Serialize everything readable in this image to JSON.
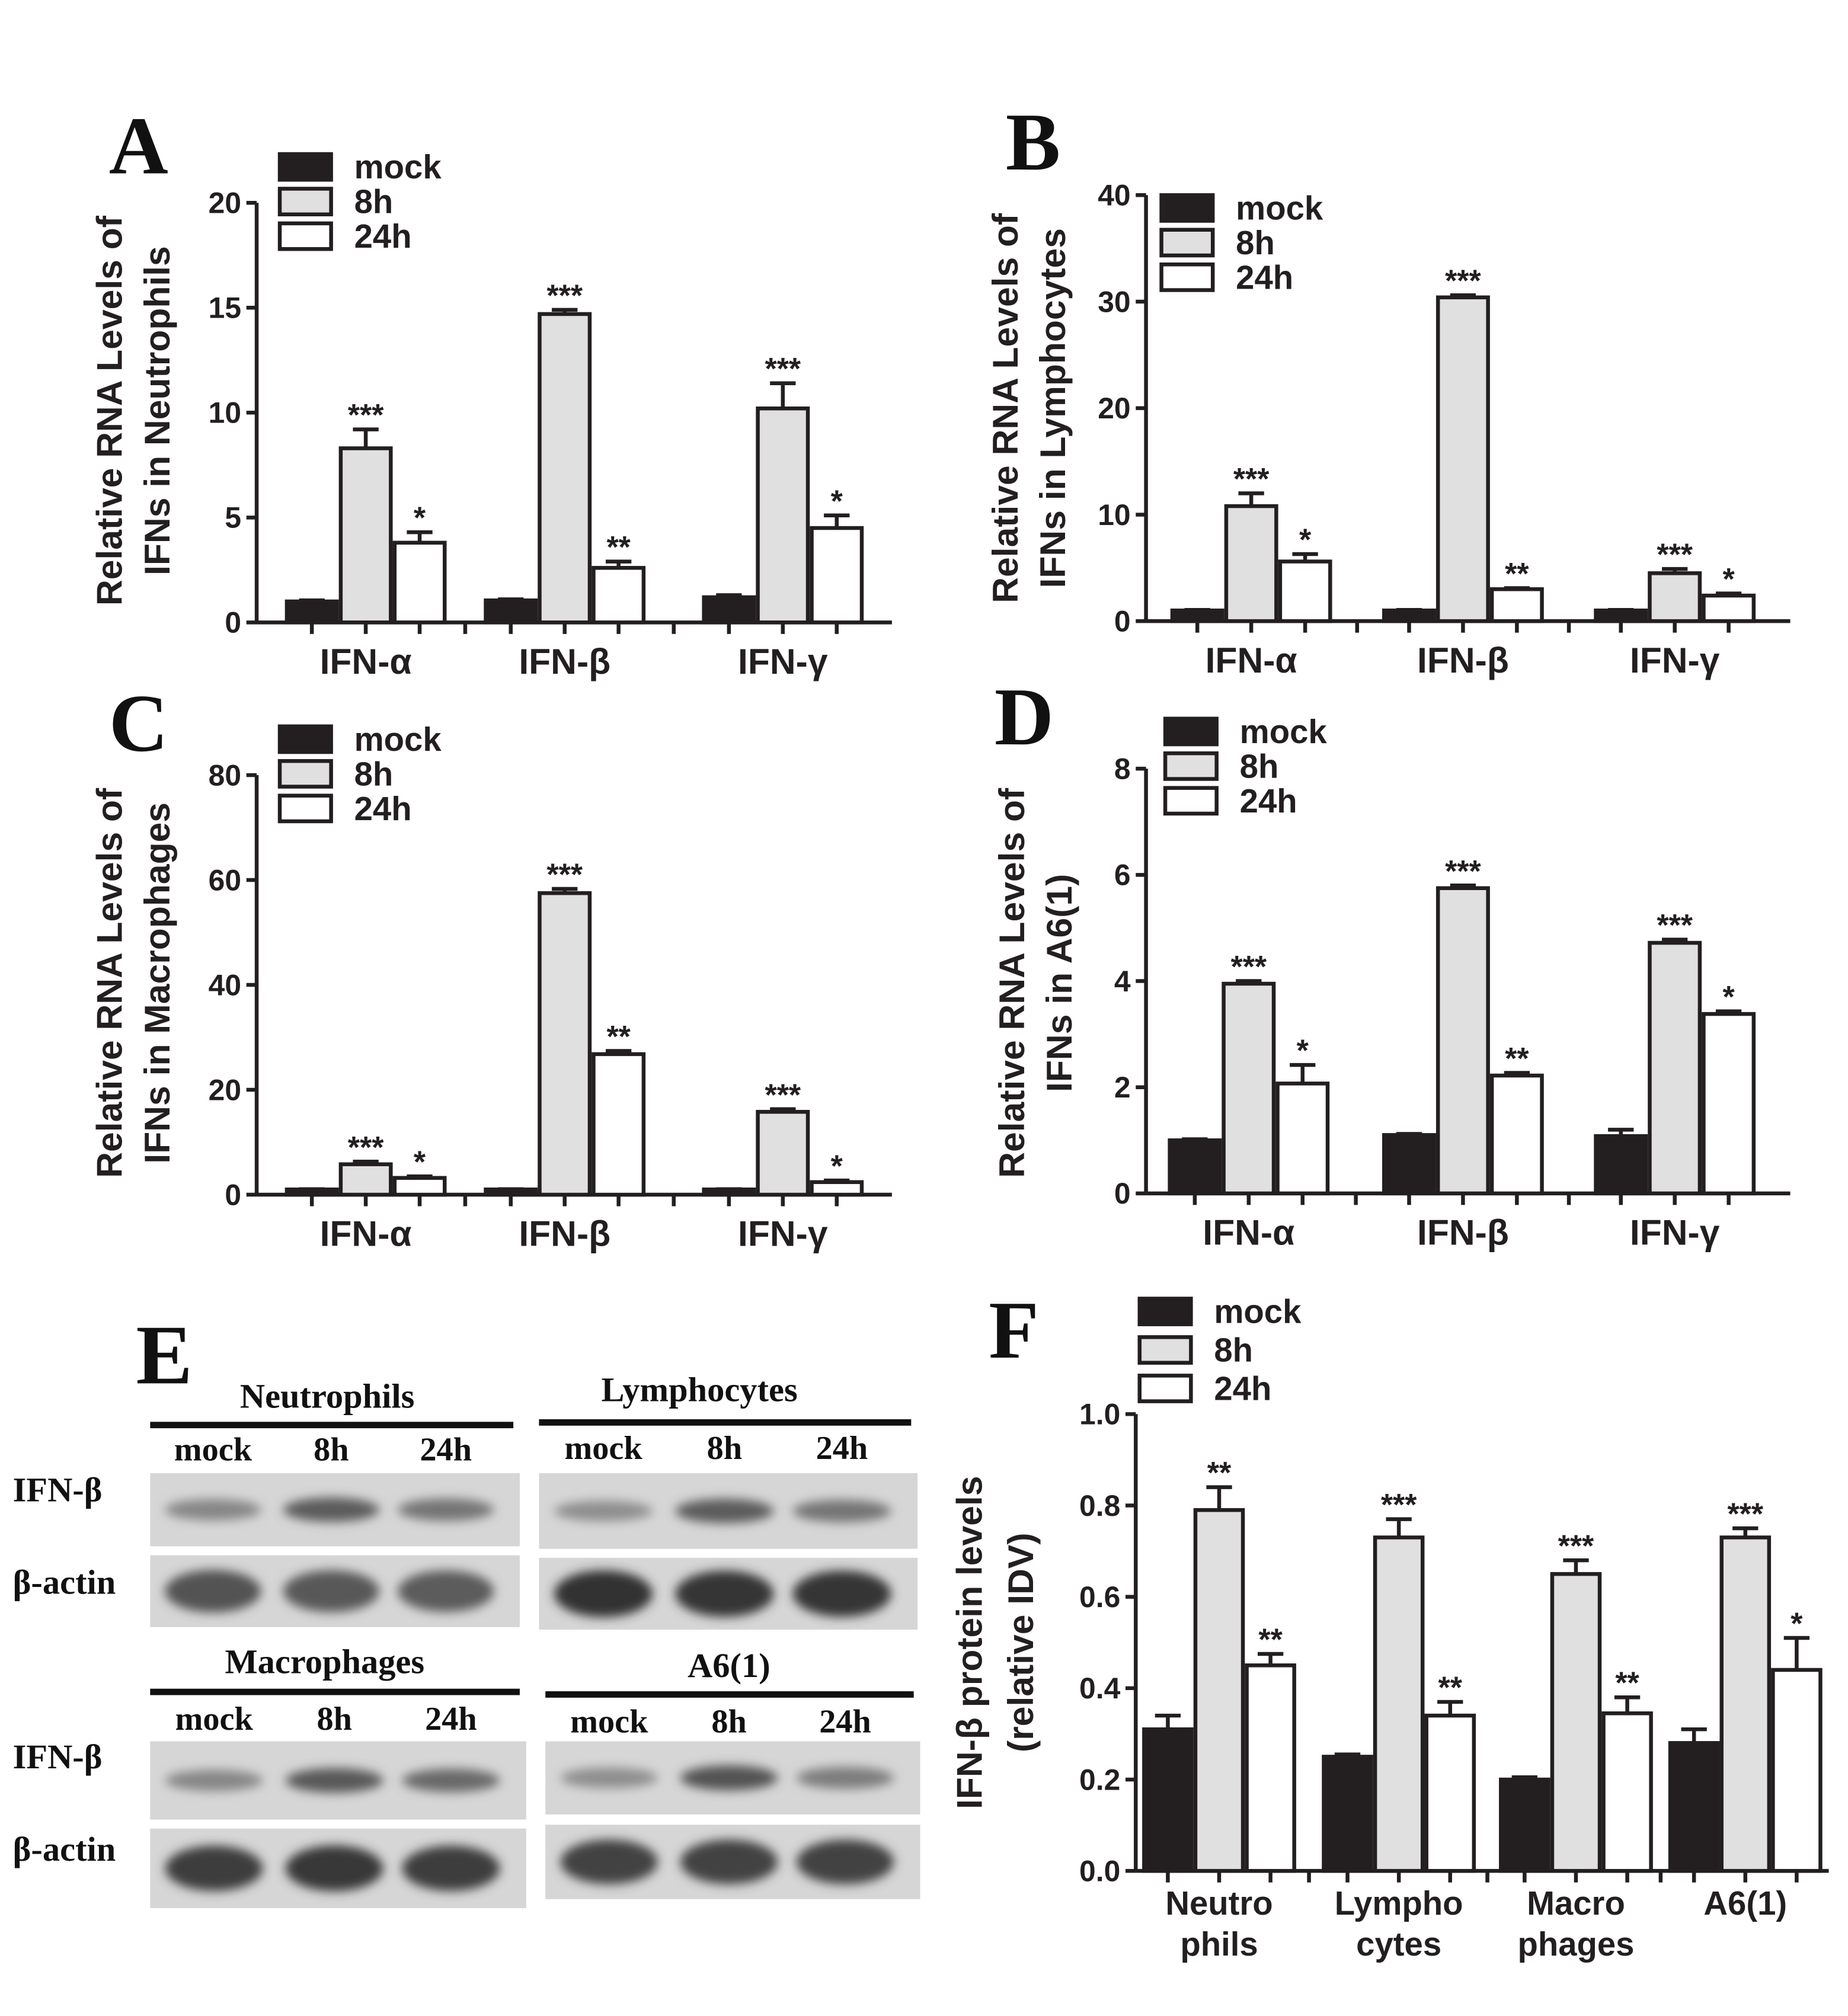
{
  "legend": {
    "mock": "mock",
    "h8": "8h",
    "h24": "24h"
  },
  "colors": {
    "mock": "#231f20",
    "h8": "#e0e0e0",
    "h24": "#ffffff",
    "stroke": "#231f20"
  },
  "chart_data": [
    {
      "id": "A",
      "type": "bar",
      "panel_label": "A",
      "ylabel": [
        "Relative RNA Levels of",
        "IFNs in Neutrophils"
      ],
      "ylim": [
        0,
        20
      ],
      "yticks": [
        "0",
        "5",
        "10",
        "15",
        "20"
      ],
      "ytick_values": [
        0,
        5,
        10,
        15,
        20
      ],
      "categories": [
        "IFN-α",
        "IFN-β",
        "IFN-γ"
      ],
      "series": [
        {
          "name": "mock",
          "values": [
            1.0,
            1.05,
            1.2
          ],
          "errors": [
            0.05,
            0.05,
            0.1
          ],
          "stars": [
            "",
            "",
            ""
          ]
        },
        {
          "name": "8h",
          "values": [
            8.3,
            14.7,
            10.2
          ],
          "errors": [
            0.9,
            0.2,
            1.2
          ],
          "stars": [
            "***",
            "***",
            "***"
          ]
        },
        {
          "name": "24h",
          "values": [
            3.8,
            2.6,
            4.5
          ],
          "errors": [
            0.5,
            0.3,
            0.6
          ],
          "stars": [
            "*",
            "**",
            "*"
          ]
        }
      ]
    },
    {
      "id": "B",
      "type": "bar",
      "panel_label": "B",
      "ylabel": [
        "Relative RNA Levels of",
        "IFNs in Lymphocytes"
      ],
      "ylim": [
        0,
        40
      ],
      "yticks": [
        "0",
        "10",
        "20",
        "30",
        "40"
      ],
      "ytick_values": [
        0,
        10,
        20,
        30,
        40
      ],
      "categories": [
        "IFN-α",
        "IFN-β",
        "IFN-γ"
      ],
      "series": [
        {
          "name": "mock",
          "values": [
            1.0,
            1.0,
            1.0
          ],
          "errors": [
            0.05,
            0.05,
            0.05
          ],
          "stars": [
            "",
            "",
            ""
          ]
        },
        {
          "name": "8h",
          "values": [
            10.8,
            30.4,
            4.5
          ],
          "errors": [
            1.2,
            0.2,
            0.4
          ],
          "stars": [
            "***",
            "***",
            "***"
          ]
        },
        {
          "name": "24h",
          "values": [
            5.6,
            3.0,
            2.4
          ],
          "errors": [
            0.7,
            0.1,
            0.2
          ],
          "stars": [
            "*",
            "**",
            "*"
          ]
        }
      ]
    },
    {
      "id": "C",
      "type": "bar",
      "panel_label": "C",
      "ylabel": [
        "Relative RNA Levels of",
        "IFNs in Macrophages"
      ],
      "ylim": [
        0,
        80
      ],
      "yticks": [
        "0",
        "20",
        "40",
        "60",
        "80"
      ],
      "ytick_values": [
        0,
        20,
        40,
        60,
        80
      ],
      "categories": [
        "IFN-α",
        "IFN-β",
        "IFN-γ"
      ],
      "series": [
        {
          "name": "mock",
          "values": [
            1.0,
            1.0,
            1.0
          ],
          "errors": [
            0.05,
            0.05,
            0.05
          ],
          "stars": [
            "",
            "",
            ""
          ]
        },
        {
          "name": "8h",
          "values": [
            5.8,
            57.5,
            15.8
          ],
          "errors": [
            0.5,
            0.8,
            0.5
          ],
          "stars": [
            "***",
            "***",
            "***"
          ]
        },
        {
          "name": "24h",
          "values": [
            3.2,
            26.8,
            2.4
          ],
          "errors": [
            0.3,
            0.6,
            0.3
          ],
          "stars": [
            "*",
            "**",
            "*"
          ]
        }
      ]
    },
    {
      "id": "D",
      "type": "bar",
      "panel_label": "D",
      "ylabel": [
        "Relative RNA Levels of",
        "IFNs in A6(1)"
      ],
      "ylim": [
        0,
        8
      ],
      "yticks": [
        "0",
        "2",
        "4",
        "6",
        "8"
      ],
      "ytick_values": [
        0,
        2,
        4,
        6,
        8
      ],
      "categories": [
        "IFN-α",
        "IFN-β",
        "IFN-γ"
      ],
      "series": [
        {
          "name": "mock",
          "values": [
            1.0,
            1.1,
            1.08
          ],
          "errors": [
            0.02,
            0.02,
            0.12
          ],
          "stars": [
            "",
            "",
            ""
          ]
        },
        {
          "name": "8h",
          "values": [
            3.95,
            5.75,
            4.72
          ],
          "errors": [
            0.05,
            0.05,
            0.06
          ],
          "stars": [
            "***",
            "***",
            "***"
          ]
        },
        {
          "name": "24h",
          "values": [
            2.07,
            2.22,
            3.38
          ],
          "errors": [
            0.35,
            0.05,
            0.05
          ],
          "stars": [
            "*",
            "**",
            "*"
          ]
        }
      ]
    },
    {
      "id": "F",
      "type": "bar",
      "panel_label": "F",
      "ylabel": [
        "IFN-β  protein levels",
        "(relative IDV)"
      ],
      "ylim": [
        0,
        1.0
      ],
      "yticks": [
        "0.0",
        "0.2",
        "0.4",
        "0.6",
        "0.8",
        "1.0"
      ],
      "ytick_values": [
        0,
        0.2,
        0.4,
        0.6,
        0.8,
        1.0
      ],
      "categories": [
        [
          "Neutro",
          "phils"
        ],
        [
          "Lympho",
          "cytes"
        ],
        [
          "Macro",
          "phages"
        ],
        [
          "A6(1)",
          ""
        ]
      ],
      "series": [
        {
          "name": "mock",
          "values": [
            0.31,
            0.25,
            0.2,
            0.28
          ],
          "errors": [
            0.03,
            0.005,
            0.005,
            0.03
          ],
          "stars": [
            "",
            "",
            "",
            ""
          ]
        },
        {
          "name": "8h",
          "values": [
            0.79,
            0.73,
            0.65,
            0.73
          ],
          "errors": [
            0.05,
            0.04,
            0.03,
            0.02
          ],
          "stars": [
            "**",
            "***",
            "***",
            "***"
          ]
        },
        {
          "name": "24h",
          "values": [
            0.45,
            0.34,
            0.345,
            0.44
          ],
          "errors": [
            0.025,
            0.03,
            0.035,
            0.07
          ],
          "stars": [
            "**",
            "**",
            "**",
            "*"
          ]
        }
      ]
    }
  ],
  "blot": {
    "panel_label": "E",
    "row_labels": [
      "IFN-β",
      "β-actin"
    ],
    "lanes": [
      "mock",
      "8h",
      "24h"
    ],
    "groups": [
      {
        "title": "Neutrophils",
        "ifn_intensity": [
          0.45,
          0.7,
          0.55
        ],
        "actin_intensity": [
          0.75,
          0.72,
          0.7
        ]
      },
      {
        "title": "Lymphocytes",
        "ifn_intensity": [
          0.4,
          0.7,
          0.55
        ],
        "actin_intensity": [
          0.95,
          0.92,
          0.92
        ]
      },
      {
        "title": "Macrophages",
        "ifn_intensity": [
          0.45,
          0.72,
          0.62
        ],
        "actin_intensity": [
          0.88,
          0.9,
          0.88
        ]
      },
      {
        "title": "A6(1)",
        "ifn_intensity": [
          0.4,
          0.75,
          0.5
        ],
        "actin_intensity": [
          0.85,
          0.85,
          0.85
        ]
      }
    ]
  }
}
